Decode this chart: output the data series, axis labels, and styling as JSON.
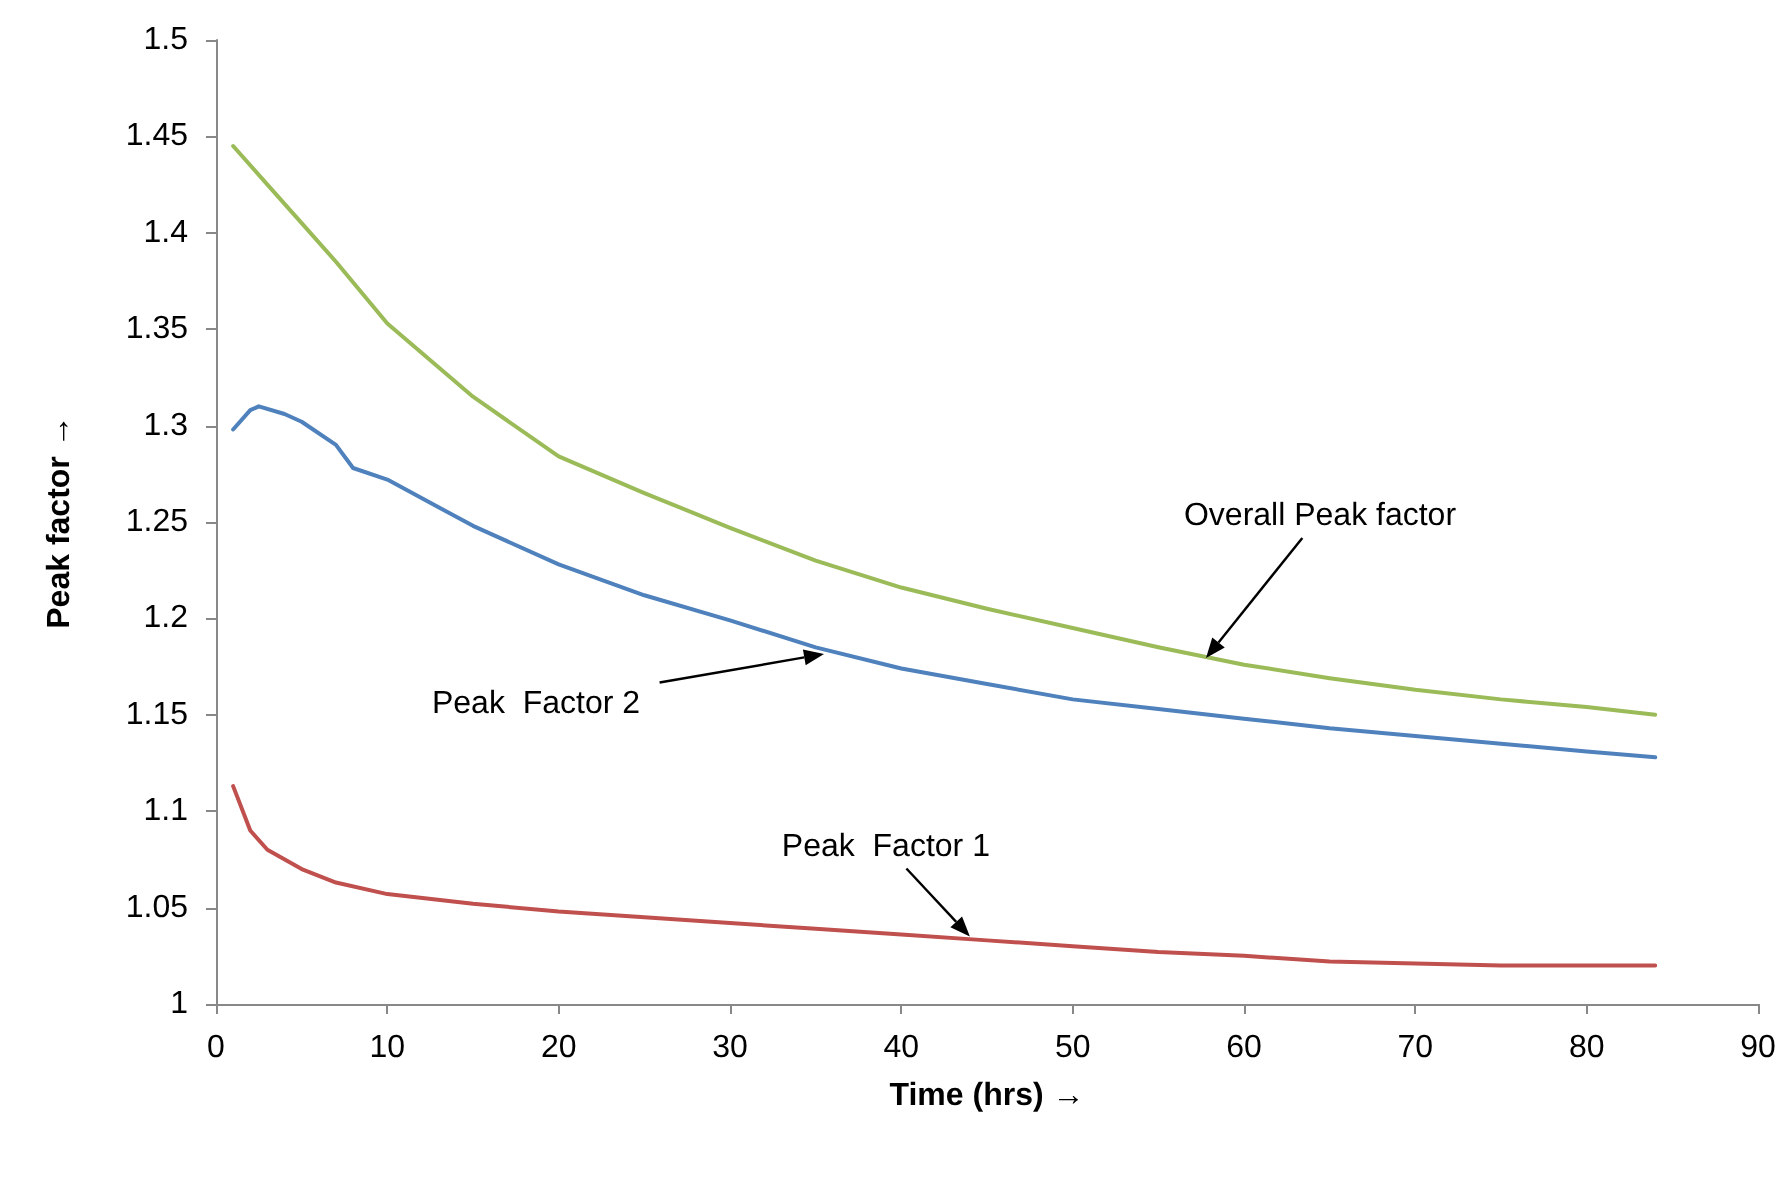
{
  "chart_data": {
    "type": "line",
    "xlabel": "Time (hrs) →",
    "ylabel": "Peak factor →",
    "xlim": [
      0,
      90
    ],
    "xticks": [
      0,
      10,
      20,
      30,
      40,
      50,
      60,
      70,
      80,
      90
    ],
    "ylim": [
      1,
      1.5
    ],
    "yticks": [
      1,
      1.05,
      1.1,
      1.15,
      1.2,
      1.25,
      1.3,
      1.35,
      1.4,
      1.45,
      1.5
    ],
    "grid": false,
    "marker": "none",
    "line_style": "solid",
    "series": [
      {
        "color": "#9bbb59",
        "x": [
          1,
          3,
          5,
          7,
          10,
          15,
          20,
          25,
          30,
          35,
          40,
          45,
          50,
          55,
          60,
          65,
          70,
          75,
          80,
          84
        ],
        "values": [
          1.445,
          1.425,
          1.405,
          1.385,
          1.353,
          1.315,
          1.284,
          1.265,
          1.247,
          1.23,
          1.216,
          1.205,
          1.195,
          1.185,
          1.176,
          1.169,
          1.163,
          1.158,
          1.154,
          1.15
        ]
      },
      {
        "color": "#4f81bd",
        "x": [
          1,
          2,
          2.5,
          4,
          5,
          7,
          8,
          10,
          15,
          20,
          25,
          30,
          35,
          40,
          45,
          50,
          55,
          60,
          65,
          70,
          75,
          80,
          84
        ],
        "values": [
          1.298,
          1.308,
          1.31,
          1.306,
          1.302,
          1.29,
          1.278,
          1.272,
          1.248,
          1.228,
          1.212,
          1.199,
          1.185,
          1.174,
          1.166,
          1.158,
          1.153,
          1.148,
          1.143,
          1.139,
          1.135,
          1.131,
          1.128
        ]
      },
      {
        "color": "#c0504d",
        "x": [
          1,
          2,
          3,
          5,
          7,
          10,
          15,
          20,
          25,
          30,
          35,
          40,
          45,
          50,
          55,
          60,
          65,
          70,
          75,
          80,
          84
        ],
        "values": [
          1.113,
          1.09,
          1.08,
          1.07,
          1.063,
          1.057,
          1.052,
          1.048,
          1.045,
          1.042,
          1.039,
          1.036,
          1.033,
          1.03,
          1.027,
          1.025,
          1.022,
          1.021,
          1.02,
          1.02,
          1.02
        ]
      }
    ],
    "annotations": [
      "Overall Peak factor",
      "Peak  Factor 2",
      {
        "text": "Peak  Factor 1",
        "x": 44,
        "y": 1.035
      }
    ]
  }
}
